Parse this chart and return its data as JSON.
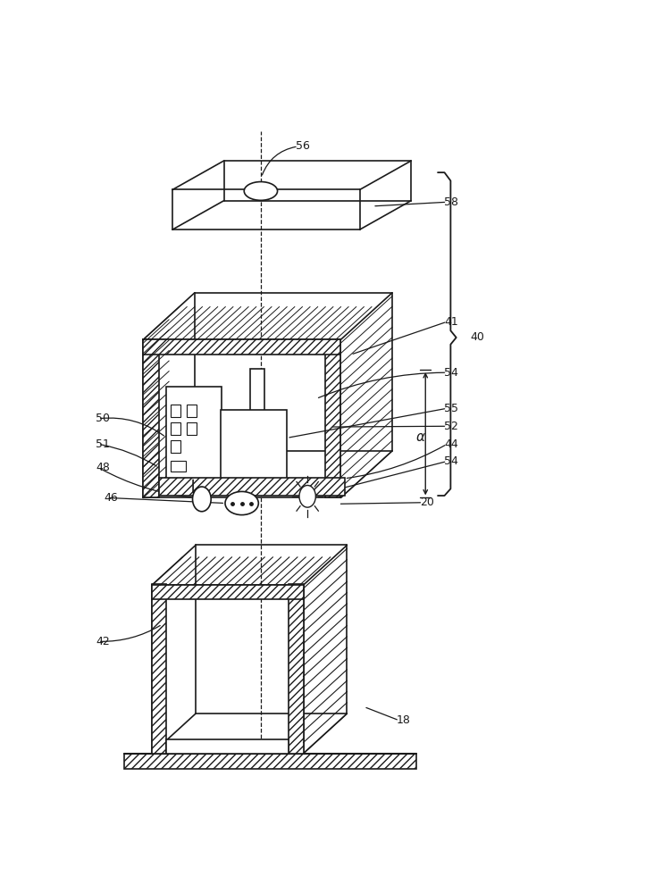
{
  "bg_color": "#ffffff",
  "lc": "#1a1a1a",
  "lw_main": 1.3,
  "fig_w": 7.41,
  "fig_h": 10.0,
  "dpi": 100
}
